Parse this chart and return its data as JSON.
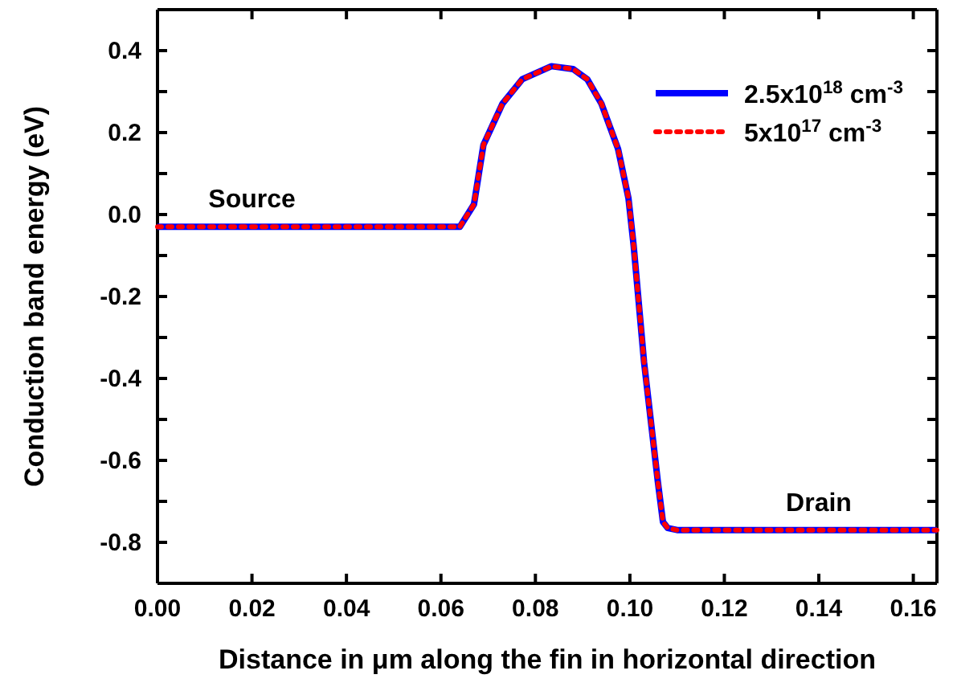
{
  "chart_data": {
    "type": "line",
    "xlabel": "Distance in μm along the fin in horizontal direction",
    "ylabel": "Conduction band energy (eV)",
    "xlim": [
      0,
      0.165
    ],
    "ylim": [
      -0.9,
      0.5
    ],
    "xticks": [
      {
        "value": 0,
        "label": "0.00"
      },
      0.02,
      0.04,
      0.06,
      0.08,
      {
        "value": 0.1,
        "label": "0.10"
      },
      0.12,
      0.14,
      0.16
    ],
    "yticks": [
      {
        "value": -0.9,
        "label": null
      },
      -0.8,
      {
        "value": -0.7,
        "label": null
      },
      -0.6,
      {
        "value": -0.5,
        "label": null
      },
      -0.4,
      {
        "value": -0.3,
        "label": null
      },
      -0.2,
      {
        "value": -0.1,
        "label": null
      },
      {
        "value": 0,
        "label": "0.0"
      },
      {
        "value": 0.1,
        "label": null
      },
      0.2,
      {
        "value": 0.3,
        "label": null
      },
      0.4,
      {
        "value": 0.5,
        "label": null
      }
    ],
    "x": [
      0,
      0.02,
      0.04,
      0.064,
      0.067,
      0.069,
      0.071,
      0.073,
      0.0772,
      0.0834,
      0.088,
      0.091,
      0.094,
      0.0975,
      0.0997,
      0.1008,
      0.103,
      0.1059,
      0.107,
      0.108,
      0.11,
      0.14,
      0.165
    ],
    "series": [
      {
        "name": "2.5x10$^{18}$ cm$^{-3}$",
        "color": "#0000ff",
        "line_style": "solid",
        "values": [
          -0.03,
          -0.03,
          -0.03,
          -0.03,
          0.025,
          0.17,
          0.22,
          0.27,
          0.33,
          0.362,
          0.355,
          0.33,
          0.27,
          0.16,
          0.04,
          -0.076,
          -0.36,
          -0.65,
          -0.75,
          -0.765,
          -0.77,
          -0.77,
          -0.77
        ]
      },
      {
        "name": "5x10$^{17}$ cm$^{-3}$",
        "color": "#ff0000",
        "line_style": "dotted",
        "values": [
          -0.03,
          -0.03,
          -0.03,
          -0.03,
          0.025,
          0.17,
          0.22,
          0.27,
          0.33,
          0.362,
          0.355,
          0.33,
          0.27,
          0.16,
          0.04,
          -0.076,
          -0.36,
          -0.65,
          -0.75,
          -0.765,
          -0.77,
          -0.77,
          -0.77
        ]
      }
    ],
    "annotations": [
      {
        "text": "Source",
        "x": 0.02,
        "y": -0.03
      },
      {
        "text": "Drain",
        "x": 0.14,
        "y": -0.77
      }
    ],
    "legend": "top right",
    "grid": false,
    "marker": "none"
  }
}
